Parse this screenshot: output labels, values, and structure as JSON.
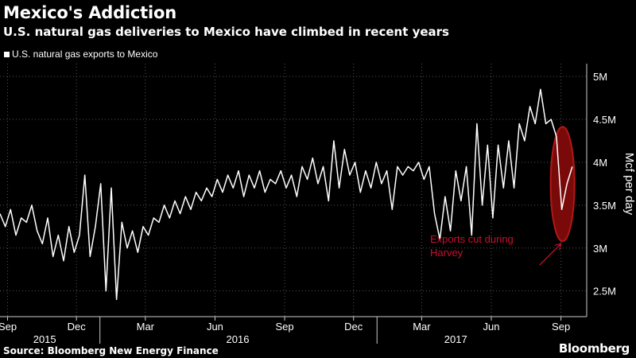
{
  "header": {
    "title": "Mexico's Addiction",
    "subtitle": "U.S. natural gas deliveries to Mexico have climbed in recent years"
  },
  "footer": {
    "source": "Source: Bloomberg New Energy Finance",
    "brand": "Bloomberg"
  },
  "chart_data": {
    "type": "line",
    "title": "Mexico's Addiction",
    "subtitle": "U.S. natural gas deliveries to Mexico have climbed in recent years",
    "ylabel": "Mcf per day",
    "xlabel": "",
    "ylim": [
      2200000,
      5150000
    ],
    "xlim": [
      "2015-08-22",
      "2017-10-05"
    ],
    "yticks": [
      {
        "value": 2500000,
        "label": "2.5M"
      },
      {
        "value": 3000000,
        "label": "3M"
      },
      {
        "value": 3500000,
        "label": "3.5M"
      },
      {
        "value": 4000000,
        "label": "4M"
      },
      {
        "value": 4500000,
        "label": "4.5M"
      },
      {
        "value": 5000000,
        "label": "5M"
      }
    ],
    "xticks": [
      {
        "date": "2015-09-01",
        "label": "Sep"
      },
      {
        "date": "2015-12-01",
        "label": "Dec"
      },
      {
        "date": "2016-03-01",
        "label": "Mar"
      },
      {
        "date": "2016-06-01",
        "label": "Jun"
      },
      {
        "date": "2016-09-01",
        "label": "Sep"
      },
      {
        "date": "2016-12-01",
        "label": "Dec"
      },
      {
        "date": "2017-03-01",
        "label": "Mar"
      },
      {
        "date": "2017-06-01",
        "label": "Jun"
      },
      {
        "date": "2017-09-01",
        "label": "Sep"
      }
    ],
    "year_labels": [
      {
        "date": "2015-10-20",
        "label": "2015"
      },
      {
        "date": "2016-07-01",
        "label": "2016"
      },
      {
        "date": "2017-04-15",
        "label": "2017"
      }
    ],
    "year_separators": [
      "2016-01-01",
      "2017-01-01"
    ],
    "grid": true,
    "legend_position": "top-left",
    "series": [
      {
        "name": "U.S. natural gas exports to Mexico",
        "color": "#ffffff",
        "points": [
          [
            "2015-08-22",
            3400000
          ],
          [
            "2015-08-29",
            3250000
          ],
          [
            "2015-09-05",
            3450000
          ],
          [
            "2015-09-12",
            3150000
          ],
          [
            "2015-09-19",
            3350000
          ],
          [
            "2015-09-26",
            3300000
          ],
          [
            "2015-10-03",
            3500000
          ],
          [
            "2015-10-10",
            3200000
          ],
          [
            "2015-10-17",
            3050000
          ],
          [
            "2015-10-24",
            3350000
          ],
          [
            "2015-10-31",
            2900000
          ],
          [
            "2015-11-07",
            3150000
          ],
          [
            "2015-11-14",
            2850000
          ],
          [
            "2015-11-21",
            3250000
          ],
          [
            "2015-11-28",
            2950000
          ],
          [
            "2015-12-05",
            3150000
          ],
          [
            "2015-12-12",
            3850000
          ],
          [
            "2015-12-19",
            2900000
          ],
          [
            "2015-12-26",
            3250000
          ],
          [
            "2016-01-02",
            3750000
          ],
          [
            "2016-01-09",
            2500000
          ],
          [
            "2016-01-16",
            3700000
          ],
          [
            "2016-01-23",
            2400000
          ],
          [
            "2016-01-30",
            3300000
          ],
          [
            "2016-02-06",
            3000000
          ],
          [
            "2016-02-13",
            3200000
          ],
          [
            "2016-02-20",
            2950000
          ],
          [
            "2016-02-27",
            3250000
          ],
          [
            "2016-03-05",
            3150000
          ],
          [
            "2016-03-12",
            3350000
          ],
          [
            "2016-03-19",
            3300000
          ],
          [
            "2016-03-26",
            3500000
          ],
          [
            "2016-04-02",
            3350000
          ],
          [
            "2016-04-09",
            3550000
          ],
          [
            "2016-04-16",
            3400000
          ],
          [
            "2016-04-23",
            3600000
          ],
          [
            "2016-04-30",
            3450000
          ],
          [
            "2016-05-07",
            3650000
          ],
          [
            "2016-05-14",
            3550000
          ],
          [
            "2016-05-21",
            3700000
          ],
          [
            "2016-05-28",
            3600000
          ],
          [
            "2016-06-04",
            3800000
          ],
          [
            "2016-06-11",
            3650000
          ],
          [
            "2016-06-18",
            3850000
          ],
          [
            "2016-06-25",
            3700000
          ],
          [
            "2016-07-02",
            3900000
          ],
          [
            "2016-07-09",
            3600000
          ],
          [
            "2016-07-16",
            3850000
          ],
          [
            "2016-07-23",
            3700000
          ],
          [
            "2016-07-30",
            3900000
          ],
          [
            "2016-08-06",
            3650000
          ],
          [
            "2016-08-13",
            3800000
          ],
          [
            "2016-08-20",
            3750000
          ],
          [
            "2016-08-27",
            3900000
          ],
          [
            "2016-09-03",
            3700000
          ],
          [
            "2016-09-10",
            3850000
          ],
          [
            "2016-09-17",
            3600000
          ],
          [
            "2016-09-24",
            3950000
          ],
          [
            "2016-10-01",
            3800000
          ],
          [
            "2016-10-08",
            4050000
          ],
          [
            "2016-10-15",
            3750000
          ],
          [
            "2016-10-22",
            3950000
          ],
          [
            "2016-10-29",
            3550000
          ],
          [
            "2016-11-05",
            4250000
          ],
          [
            "2016-11-12",
            3700000
          ],
          [
            "2016-11-19",
            4150000
          ],
          [
            "2016-11-26",
            3850000
          ],
          [
            "2016-12-03",
            4000000
          ],
          [
            "2016-12-10",
            3650000
          ],
          [
            "2016-12-17",
            3900000
          ],
          [
            "2016-12-24",
            3700000
          ],
          [
            "2016-12-31",
            4000000
          ],
          [
            "2017-01-07",
            3750000
          ],
          [
            "2017-01-14",
            3900000
          ],
          [
            "2017-01-21",
            3450000
          ],
          [
            "2017-01-28",
            3950000
          ],
          [
            "2017-02-04",
            3850000
          ],
          [
            "2017-02-11",
            3950000
          ],
          [
            "2017-02-18",
            3900000
          ],
          [
            "2017-02-25",
            4000000
          ],
          [
            "2017-03-04",
            3800000
          ],
          [
            "2017-03-11",
            3950000
          ],
          [
            "2017-03-18",
            3400000
          ],
          [
            "2017-03-25",
            3100000
          ],
          [
            "2017-04-01",
            3600000
          ],
          [
            "2017-04-08",
            3200000
          ],
          [
            "2017-04-15",
            3900000
          ],
          [
            "2017-04-22",
            3550000
          ],
          [
            "2017-04-29",
            3950000
          ],
          [
            "2017-05-06",
            3150000
          ],
          [
            "2017-05-13",
            4450000
          ],
          [
            "2017-05-20",
            3500000
          ],
          [
            "2017-05-27",
            4200000
          ],
          [
            "2017-06-03",
            3350000
          ],
          [
            "2017-06-10",
            4200000
          ],
          [
            "2017-06-17",
            3700000
          ],
          [
            "2017-06-24",
            4250000
          ],
          [
            "2017-07-01",
            3700000
          ],
          [
            "2017-07-08",
            4450000
          ],
          [
            "2017-07-15",
            4250000
          ],
          [
            "2017-07-22",
            4650000
          ],
          [
            "2017-07-29",
            4450000
          ],
          [
            "2017-08-05",
            4850000
          ],
          [
            "2017-08-12",
            4450000
          ],
          [
            "2017-08-19",
            4500000
          ],
          [
            "2017-08-26",
            4300000
          ],
          [
            "2017-09-02",
            3450000
          ],
          [
            "2017-09-09",
            3750000
          ],
          [
            "2017-09-16",
            3950000
          ]
        ]
      }
    ],
    "annotations": [
      {
        "text_lines": [
          "Exports cut during",
          "Harvey"
        ],
        "color": "#c8102e",
        "target_date": "2017-09-01",
        "target_value": 3700000
      }
    ]
  }
}
